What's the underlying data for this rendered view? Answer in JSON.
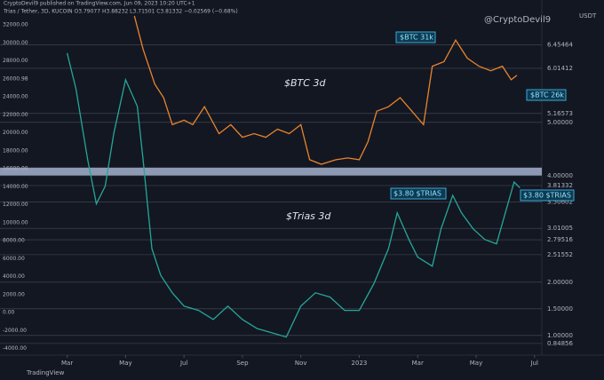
{
  "header": "CryptoDevil9 published on TradingView.com, Jun 09, 2023 10:20 UTC+1",
  "symbol": "Trias / Tether, 3D, KUCOIN  O3.79077 H3.88232 L3.71501 C3.81332 −0.02569 (−0.68%)",
  "watermark": "@CryptoDevil9",
  "footer": "TradingView",
  "currency": "USDT",
  "annotations": [
    "$BTC 3d",
    "$Trias 3d",
    "$BTC 31k",
    "$BTC 26k",
    "$3.80 $TRIAS",
    "$3.80 $TRIAS"
  ],
  "chart_data": {
    "type": "line",
    "xlim": [
      -2.3,
      16.25
    ],
    "xticks": [
      {
        "value": 0,
        "label": "Mar"
      },
      {
        "value": 2,
        "label": "May"
      },
      {
        "value": 4,
        "label": "Jul"
      },
      {
        "value": 6,
        "label": "Sep"
      },
      {
        "value": 8,
        "label": "Nov"
      },
      {
        "value": 10,
        "label": "2023"
      },
      {
        "value": 12,
        "label": "Mar"
      },
      {
        "value": 14,
        "label": "May"
      },
      {
        "value": 16,
        "label": "Jul"
      }
    ],
    "ylim": [
      -4740,
      33780
    ],
    "yticks": [
      {
        "value": 32000,
        "label": "32000.00"
      },
      {
        "value": 30000,
        "label": "30000.00"
      },
      {
        "value": 28000,
        "label": "28000.00"
      },
      {
        "value": 26000.98,
        "label": "26000.98"
      },
      {
        "value": 24000,
        "label": "24000.00"
      },
      {
        "value": 22000,
        "label": "22000.00"
      },
      {
        "value": 20000,
        "label": "20000.00"
      },
      {
        "value": 18000,
        "label": "18000.00"
      },
      {
        "value": 16000,
        "label": "16000.00"
      },
      {
        "value": 14000,
        "label": "14000.00"
      },
      {
        "value": 12000,
        "label": "12000.00"
      },
      {
        "value": 10000,
        "label": "10000.00"
      },
      {
        "value": 8000,
        "label": "8000.00"
      },
      {
        "value": 6000,
        "label": "6000.00"
      },
      {
        "value": 4000,
        "label": "4000.00"
      },
      {
        "value": 2000,
        "label": "2000.00"
      },
      {
        "value": 0,
        "label": "0.00"
      },
      {
        "value": -2000,
        "label": "-2000.00"
      },
      {
        "value": -4000,
        "label": "-4000.00"
      }
    ],
    "y2lim": [
      0.63,
      7.13
    ],
    "y2ticks": [
      {
        "value": 6.45464,
        "label": "6.45464"
      },
      {
        "value": 6.01412,
        "label": "6.01412"
      },
      {
        "value": 5.16573,
        "label": "5.16573"
      },
      {
        "value": 5,
        "label": "5.00000"
      },
      {
        "value": 4,
        "label": "4.00000"
      },
      {
        "value": 3.81332,
        "label": "3.81332"
      },
      {
        "value": 3.50602,
        "label": "3.50602"
      },
      {
        "value": 3.01005,
        "label": "3.01005"
      },
      {
        "value": 2.79516,
        "label": "2.79516"
      },
      {
        "value": 2.51552,
        "label": "2.51552"
      },
      {
        "value": 2,
        "label": "2.00000"
      },
      {
        "value": 1.5,
        "label": "1.50000"
      },
      {
        "value": 1,
        "label": "1.00000"
      },
      {
        "value": 0.84856,
        "label": "0.84856"
      }
    ],
    "zone": [
      4.0,
      4.15
    ],
    "series": [
      {
        "name": "BTC",
        "color": "#e8842c",
        "x": [
          2.3,
          2.6,
          3.0,
          3.3,
          3.6,
          4.0,
          4.3,
          4.7,
          5.2,
          5.6,
          6.0,
          6.4,
          6.8,
          7.2,
          7.6,
          8.0,
          8.3,
          8.7,
          9.2,
          9.6,
          10.0,
          10.3,
          10.6,
          11.0,
          11.4,
          11.8,
          12.2,
          12.5,
          12.9,
          13.3,
          13.7,
          14.1,
          14.5,
          14.9,
          15.2,
          15.4
        ],
        "values": [
          33000,
          29300,
          25400,
          23900,
          20900,
          21400,
          20900,
          22900,
          19900,
          20900,
          19500,
          19900,
          19500,
          20400,
          19900,
          20900,
          17000,
          16500,
          17000,
          17200,
          17000,
          19000,
          22400,
          22900,
          23900,
          22400,
          20900,
          27400,
          27900,
          30300,
          28300,
          27400,
          26900,
          27400,
          25900,
          26400
        ]
      },
      {
        "name": "Trias",
        "color": "#26a69a",
        "axis": "y2",
        "x": [
          0,
          0.3,
          0.7,
          1.0,
          1.3,
          1.6,
          2.0,
          2.4,
          2.6,
          2.9,
          3.2,
          3.6,
          4.0,
          4.5,
          5.0,
          5.5,
          6.0,
          6.5,
          7.0,
          7.5,
          8.0,
          8.5,
          9.0,
          9.5,
          10.0,
          10.5,
          11.0,
          11.3,
          11.7,
          12.0,
          12.5,
          12.8,
          13.2,
          13.5,
          13.9,
          14.3,
          14.7,
          15.0,
          15.3,
          15.5
        ],
        "values": [
          6.3,
          5.63,
          4.3,
          3.47,
          3.8,
          4.8,
          5.8,
          5.3,
          4.3,
          2.63,
          2.13,
          1.8,
          1.55,
          1.47,
          1.3,
          1.55,
          1.3,
          1.13,
          1.05,
          0.97,
          1.55,
          1.8,
          1.72,
          1.47,
          1.47,
          1.97,
          2.63,
          3.3,
          2.8,
          2.47,
          2.3,
          3.0,
          3.63,
          3.3,
          3.0,
          2.8,
          2.72,
          3.3,
          3.88,
          3.77
        ]
      }
    ]
  }
}
